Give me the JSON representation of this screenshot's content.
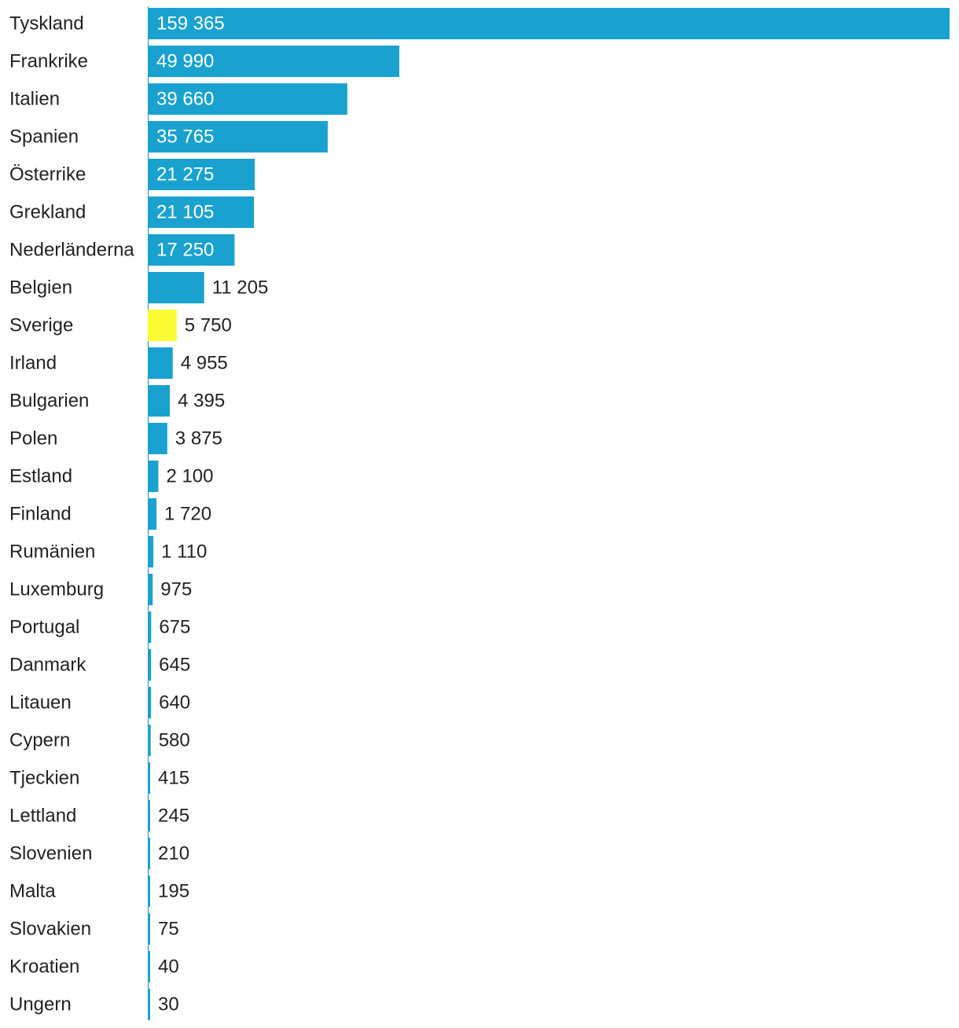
{
  "chart_data": {
    "type": "bar",
    "orientation": "horizontal",
    "categories": [
      "Tyskland",
      "Frankrike",
      "Italien",
      "Spanien",
      "Österrike",
      "Grekland",
      "Nederländerna",
      "Belgien",
      "Sverige",
      "Irland",
      "Bulgarien",
      "Polen",
      "Estland",
      "Finland",
      "Rumänien",
      "Luxemburg",
      "Portugal",
      "Danmark",
      "Litauen",
      "Cypern",
      "Tjeckien",
      "Lettland",
      "Slovenien",
      "Malta",
      "Slovakien",
      "Kroatien",
      "Ungern"
    ],
    "values": [
      159365,
      49990,
      39660,
      35765,
      21275,
      21105,
      17250,
      11205,
      5750,
      4955,
      4395,
      3875,
      2100,
      1720,
      1110,
      975,
      675,
      645,
      640,
      580,
      415,
      245,
      210,
      195,
      75,
      40,
      30
    ],
    "value_labels": [
      "159 365",
      "49 990",
      "39 660",
      "35 765",
      "21 275",
      "21 105",
      "17 250",
      "11 205",
      "5 750",
      "4 955",
      "4 395",
      "3 875",
      "2 100",
      "1 720",
      "1 110",
      "975",
      "675",
      "645",
      "640",
      "580",
      "415",
      "245",
      "210",
      "195",
      "75",
      "40",
      "30"
    ],
    "highlight": "Sverige",
    "colors": {
      "bar": "#19a2cf",
      "highlight": "#fcfc35",
      "label": "#222222",
      "inside_label": "#ffffff"
    },
    "grid": false,
    "legend": "none"
  }
}
